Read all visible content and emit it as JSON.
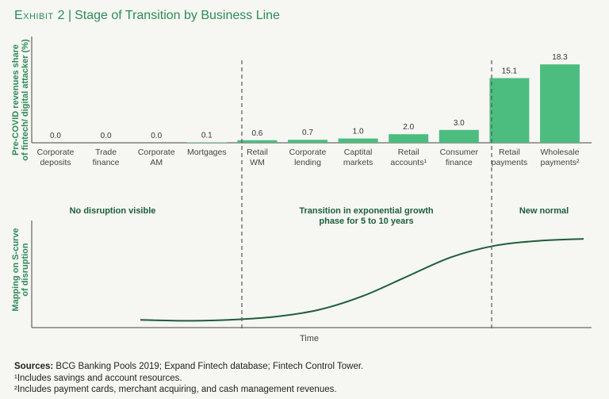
{
  "header": {
    "exhibit_label": "Exhibit 2",
    "title": "Stage of Transition by Business Line"
  },
  "chart_data": [
    {
      "type": "bar",
      "ylabel_line1": "Pre-COVID revenues share",
      "ylabel_line2": "of fintech/ digital attacker (%)",
      "categories": [
        [
          "Corporate",
          "deposits"
        ],
        [
          "Trade",
          "finance"
        ],
        [
          "Corporate",
          "AM"
        ],
        [
          "Mortgages"
        ],
        [
          "Retail",
          "WM"
        ],
        [
          "Corporate",
          "lending"
        ],
        [
          "Captital",
          "markets"
        ],
        [
          "Retail",
          "accounts¹"
        ],
        [
          "Consumer",
          "finance"
        ],
        [
          "Retail",
          "payments"
        ],
        [
          "Wholesale",
          "payments²"
        ]
      ],
      "values": [
        0.0,
        0.0,
        0.0,
        0.1,
        0.6,
        0.7,
        1.0,
        2.0,
        3.0,
        15.1,
        18.3
      ],
      "value_labels": [
        "0.0",
        "0.0",
        "0.0",
        "0.1",
        "0.6",
        "0.7",
        "1.0",
        "2.0",
        "3.0",
        "15.1",
        "18.3"
      ],
      "ylim": [
        0,
        20
      ],
      "bar_color": "#4dbd7f"
    },
    {
      "type": "line",
      "ylabel_line1": "Mapping on S-curve",
      "ylabel_line2": "of disruption",
      "xlabel": "Time",
      "x": [
        0.0,
        0.1,
        0.2,
        0.3,
        0.4,
        0.5,
        0.6,
        0.7,
        0.8,
        0.9,
        1.0
      ],
      "y": [
        0.08,
        0.07,
        0.08,
        0.11,
        0.18,
        0.32,
        0.52,
        0.72,
        0.84,
        0.89,
        0.91
      ],
      "line_color": "#1d5e3a"
    }
  ],
  "phases": [
    {
      "label_line1": "No disruption visible",
      "label_line2": ""
    },
    {
      "label_line1": "Transition in exponential growth",
      "label_line2": "phase for 5 to 10 years"
    },
    {
      "label_line1": "New normal",
      "label_line2": ""
    }
  ],
  "colors": {
    "accent": "#2e8b57",
    "bar": "#4dbd7f",
    "curve": "#1d5e3a",
    "phase_label": "#1d5e3a"
  },
  "footer": {
    "sources_label": "Sources:",
    "sources_text": " BCG Banking Pools 2019; Expand Fintech database; Fintech Control Tower.",
    "note1": "¹Includes savings and account resources.",
    "note2": "²Includes payment cards, merchant acquiring, and cash management revenues."
  }
}
